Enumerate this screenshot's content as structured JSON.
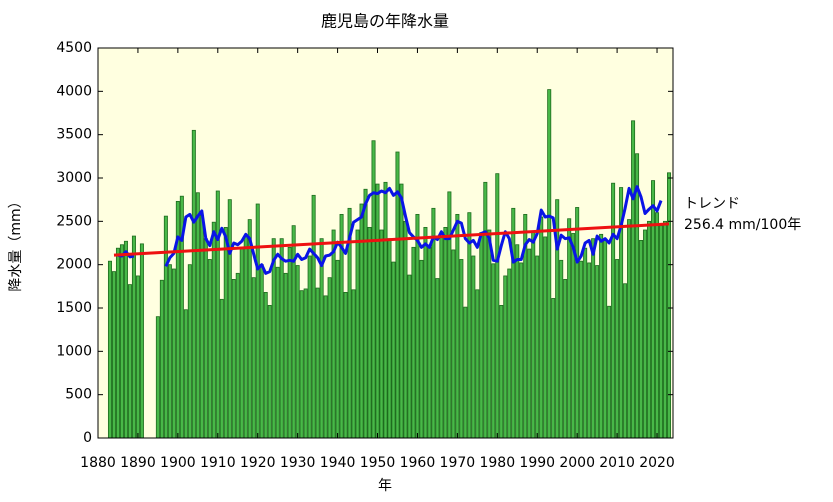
{
  "chart_data": {
    "type": "bar",
    "title": "鹿児島の年降水量",
    "x_label": "年",
    "y_label": "降水量（mm）",
    "xlim": [
      1880,
      2024
    ],
    "ylim": [
      0,
      4500
    ],
    "xticks": [
      1880,
      1890,
      1900,
      1910,
      1920,
      1930,
      1940,
      1950,
      1960,
      1970,
      1980,
      1990,
      2000,
      2010,
      2020
    ],
    "yticks": [
      0,
      500,
      1000,
      1500,
      2000,
      2500,
      3000,
      3500,
      4000,
      4500
    ],
    "grid": false,
    "background": "#ffffe0",
    "x": [
      1883,
      1884,
      1885,
      1886,
      1887,
      1888,
      1889,
      1890,
      1891,
      1892,
      1893,
      1894,
      1895,
      1896,
      1897,
      1898,
      1899,
      1900,
      1901,
      1902,
      1903,
      1904,
      1905,
      1906,
      1907,
      1908,
      1909,
      1910,
      1911,
      1912,
      1913,
      1914,
      1915,
      1916,
      1917,
      1918,
      1919,
      1920,
      1921,
      1922,
      1923,
      1924,
      1925,
      1926,
      1927,
      1928,
      1929,
      1930,
      1931,
      1932,
      1933,
      1934,
      1935,
      1936,
      1937,
      1938,
      1939,
      1940,
      1941,
      1942,
      1943,
      1944,
      1945,
      1946,
      1947,
      1948,
      1949,
      1950,
      1951,
      1952,
      1953,
      1954,
      1955,
      1956,
      1957,
      1958,
      1959,
      1960,
      1961,
      1962,
      1963,
      1964,
      1965,
      1966,
      1967,
      1968,
      1969,
      1970,
      1971,
      1972,
      1973,
      1974,
      1975,
      1976,
      1977,
      1978,
      1979,
      1980,
      1981,
      1982,
      1983,
      1984,
      1985,
      1986,
      1987,
      1988,
      1989,
      1990,
      1991,
      1992,
      1993,
      1994,
      1995,
      1996,
      1997,
      1998,
      1999,
      2000,
      2001,
      2002,
      2003,
      2004,
      2005,
      2006,
      2007,
      2008,
      2009,
      2010,
      2011,
      2012,
      2013,
      2014,
      2015,
      2016,
      2017,
      2018,
      2019,
      2020,
      2021,
      2022,
      2023
    ],
    "series": [
      {
        "type": "bar",
        "color": "#48b848",
        "edge": "#1d6b1d",
        "values": [
          2040,
          1920,
          2190,
          2230,
          2270,
          1770,
          2330,
          1870,
          2240,
          null,
          null,
          null,
          1400,
          1820,
          2560,
          2000,
          1950,
          2730,
          2790,
          1480,
          2000,
          3550,
          2830,
          2570,
          2300,
          2060,
          2490,
          2850,
          1600,
          2430,
          2750,
          1830,
          1900,
          2200,
          2330,
          2520,
          1850,
          2700,
          2000,
          1680,
          1530,
          2300,
          1970,
          2300,
          1900,
          2200,
          2450,
          1990,
          1700,
          1720,
          2100,
          2800,
          1730,
          2300,
          1640,
          1850,
          2400,
          2050,
          2580,
          1680,
          2650,
          1710,
          2400,
          2700,
          2870,
          2430,
          3430,
          2930,
          2400,
          2950,
          2300,
          2030,
          3300,
          2930,
          2500,
          1880,
          2200,
          2580,
          2050,
          2430,
          2200,
          2650,
          1840,
          2330,
          2430,
          2840,
          2170,
          2580,
          2060,
          1510,
          2600,
          2100,
          1710,
          2370,
          2950,
          2400,
          2010,
          3050,
          1530,
          1870,
          1950,
          2650,
          2230,
          2020,
          2580,
          2180,
          2380,
          2100,
          2550,
          2320,
          4020,
          1610,
          2750,
          2050,
          1830,
          2530,
          2360,
          2660,
          2040,
          2190,
          2020,
          2300,
          1990,
          2350,
          2280,
          1520,
          2940,
          2060,
          2890,
          1780,
          2520,
          3660,
          3280,
          2280,
          2400,
          2500,
          2970,
          2600,
          2450,
          2500,
          3060
        ]
      },
      {
        "type": "line",
        "color": "#0a14e6",
        "values": [
          null,
          null,
          2110,
          2100,
          2150,
          2090,
          2100,
          null,
          null,
          null,
          null,
          null,
          null,
          null,
          1980,
          2080,
          2130,
          2320,
          2280,
          2550,
          2580,
          2490,
          2560,
          2620,
          2300,
          2220,
          2380,
          2290,
          2420,
          2320,
          2130,
          2250,
          2230,
          2270,
          2350,
          2300,
          2120,
          1950,
          2000,
          1900,
          1920,
          2050,
          2120,
          2070,
          2040,
          2050,
          2040,
          2120,
          2060,
          2080,
          2180,
          2130,
          2080,
          1990,
          2100,
          2110,
          2150,
          2260,
          2200,
          2130,
          2310,
          2490,
          2520,
          2550,
          2700,
          2800,
          2830,
          2820,
          2850,
          2830,
          2880,
          2800,
          2840,
          2770,
          2560,
          2370,
          2320,
          2280,
          2200,
          2240,
          2200,
          2320,
          2290,
          2380,
          2300,
          2300,
          2400,
          2500,
          2480,
          2300,
          2250,
          2280,
          2200,
          2360,
          2380,
          2300,
          2050,
          2040,
          2220,
          2380,
          2300,
          2030,
          2060,
          2060,
          2230,
          2290,
          2260,
          2360,
          2630,
          2550,
          2560,
          2540,
          2180,
          2340,
          2300,
          2310,
          2200,
          2030,
          2100,
          2250,
          2280,
          2120,
          2330,
          2270,
          2300,
          2250,
          2350,
          2300,
          2450,
          2650,
          2880,
          2760,
          2900,
          2780,
          2590,
          2640,
          2680,
          2620,
          2740,
          null,
          null
        ]
      },
      {
        "type": "line",
        "color": "#ee1111",
        "x": [
          1884,
          2023
        ],
        "values": [
          2110,
          2470
        ]
      }
    ],
    "annotation": [
      "トレンド",
      "256.4 mm/100年"
    ]
  }
}
